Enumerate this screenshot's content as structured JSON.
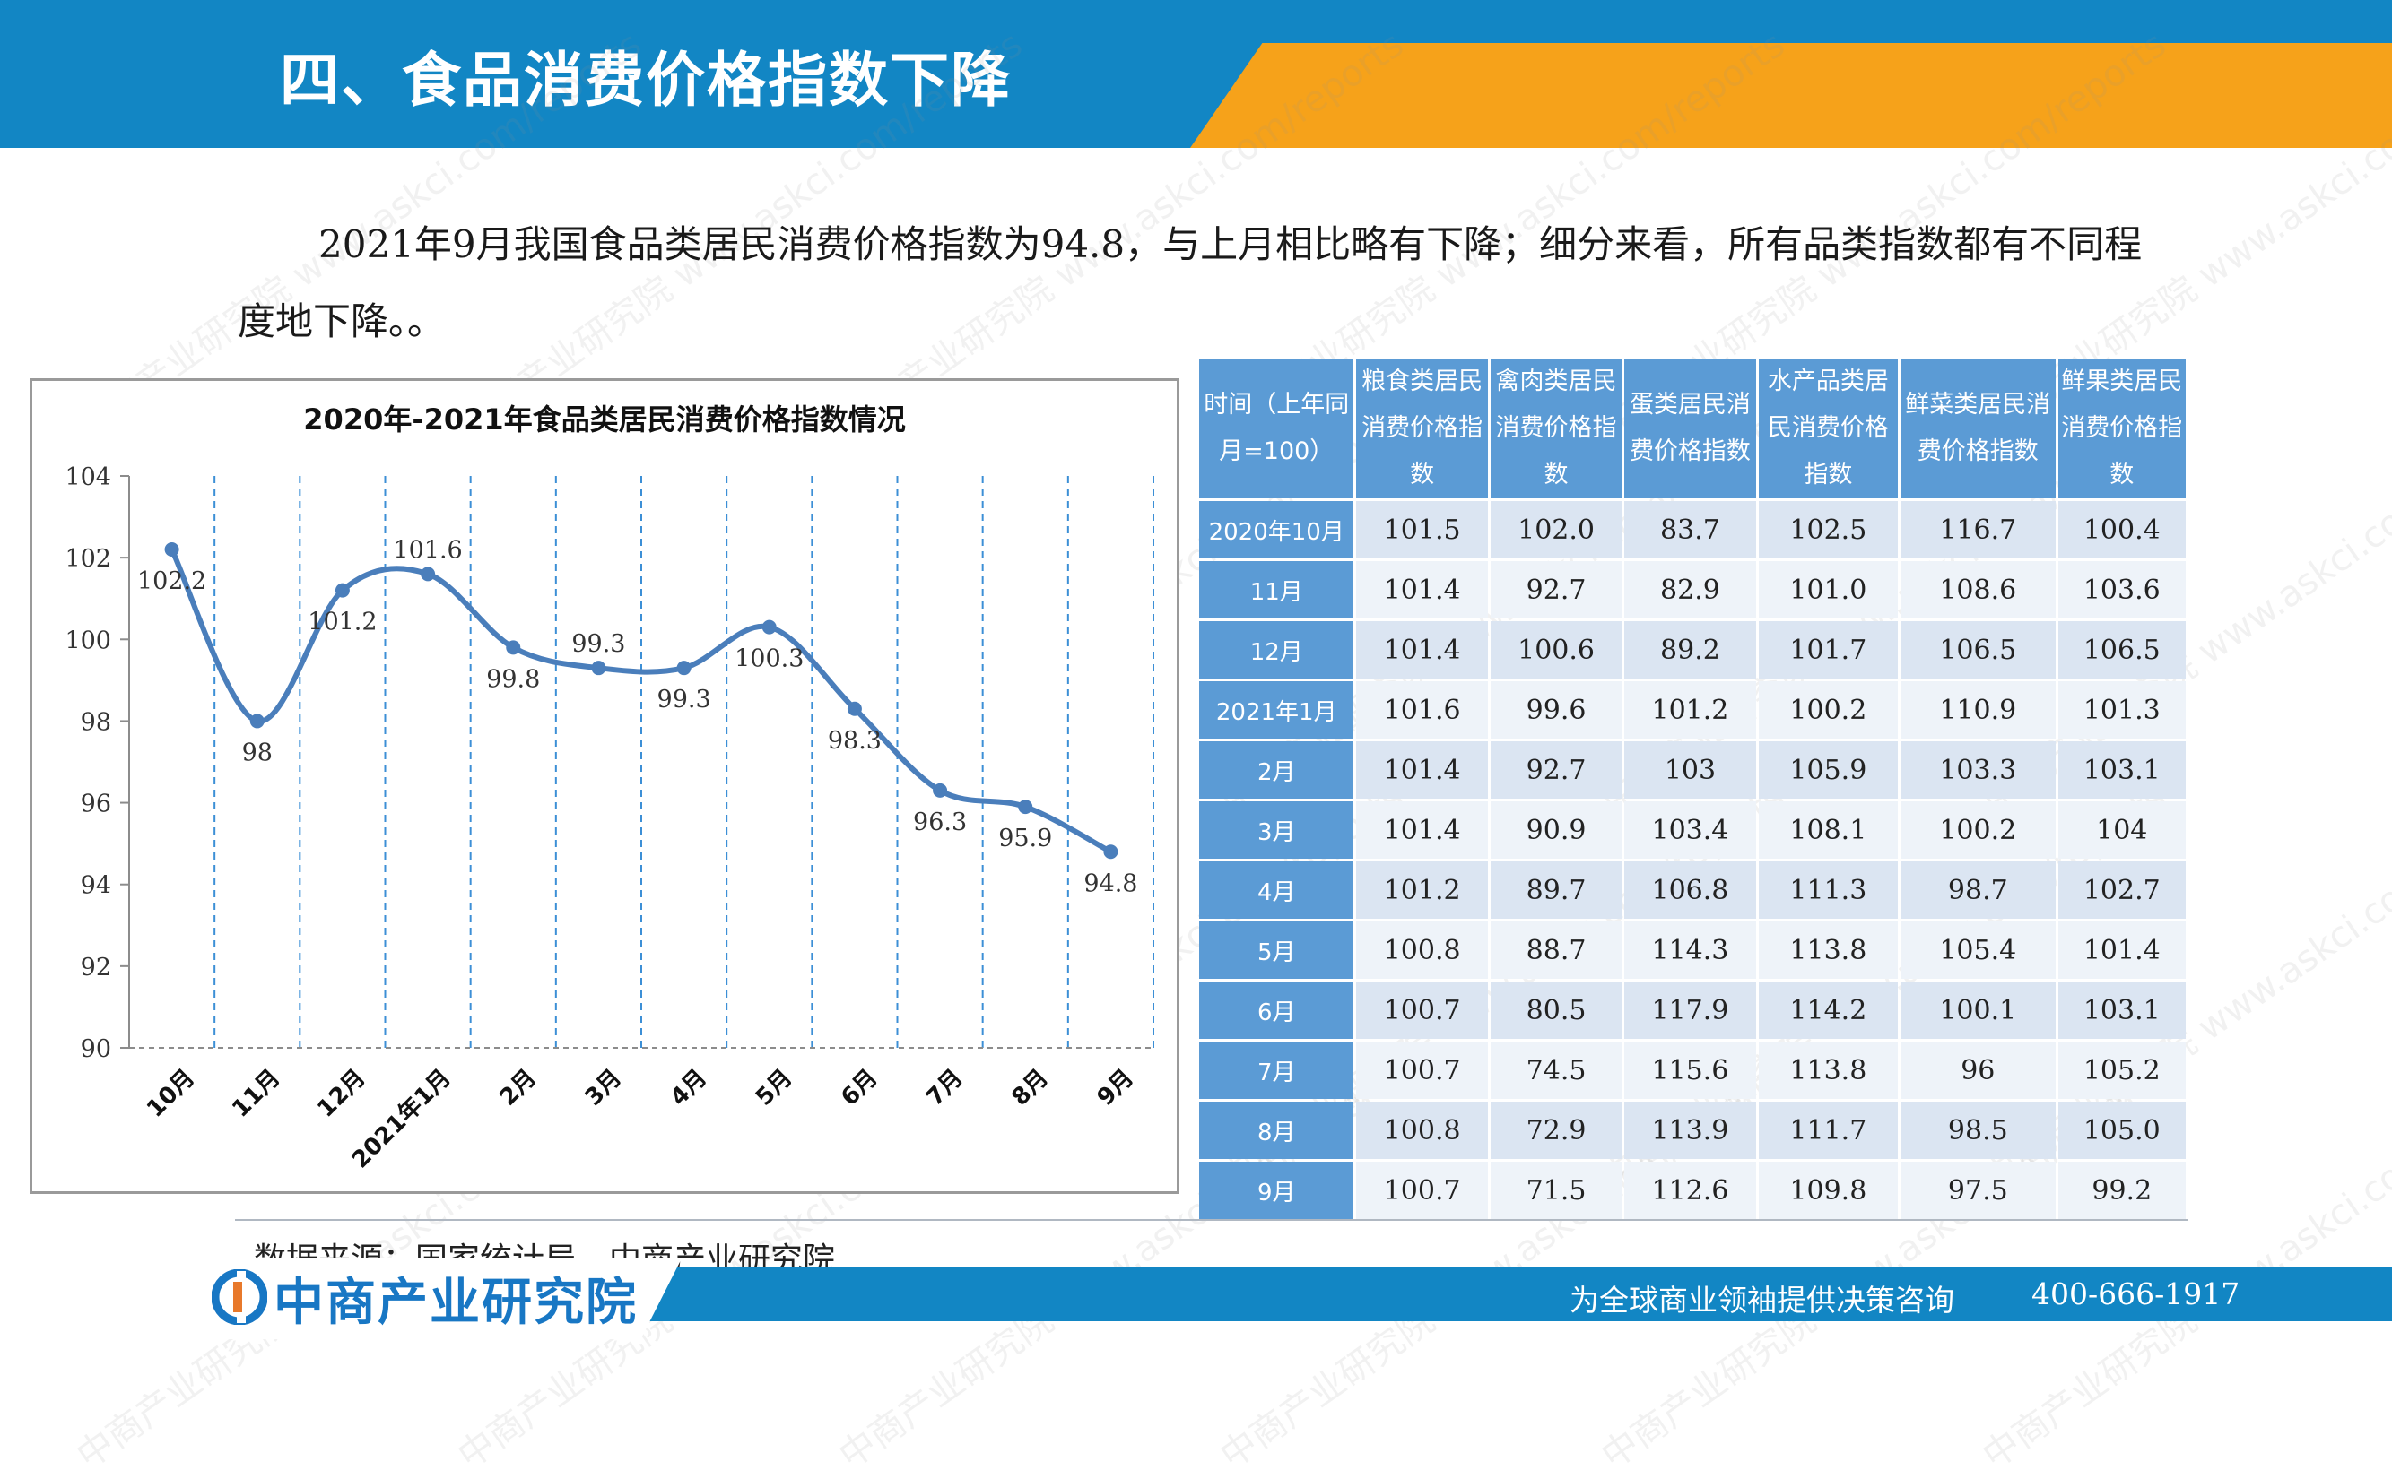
{
  "page_title": "四、食品消费价格指数下降",
  "intro_text": "2021年9月我国食品类居民消费价格指数为94.8，与上月相比略有下降；细分来看，所有品类指数都有不同程度地下降。。",
  "chart_data": {
    "type": "line",
    "title": "2020年-2021年食品类居民消费价格指数情况",
    "categories": [
      "10月",
      "11月",
      "12月",
      "2021年1月",
      "2月",
      "3月",
      "4月",
      "5月",
      "6月",
      "7月",
      "8月",
      "9月"
    ],
    "values": [
      102.2,
      98,
      101.2,
      101.6,
      99.8,
      99.3,
      99.3,
      100.3,
      98.3,
      96.3,
      95.9,
      94.8
    ],
    "y_ticks": [
      90,
      92,
      94,
      96,
      98,
      100,
      102,
      104
    ],
    "ylim": [
      90,
      104
    ],
    "line_color": "#4a7ebb",
    "gridline_style": "dashed vertical",
    "grid_color": "#3c8fd6"
  },
  "table": {
    "headers": [
      "时间（上年同月=100）",
      "粮食类居民消费价格指数",
      "禽肉类居民消费价格指数",
      "蛋类居民消费价格指数",
      "水产品类居民消费价格指数",
      "鲜菜类居民消费价格指数",
      "鲜果类居民消费价格指数"
    ],
    "rows": [
      {
        "label": "2020年10月",
        "values": [
          "101.5",
          "102.0",
          "83.7",
          "102.5",
          "116.7",
          "100.4"
        ]
      },
      {
        "label": "11月",
        "values": [
          "101.4",
          "92.7",
          "82.9",
          "101.0",
          "108.6",
          "103.6"
        ]
      },
      {
        "label": "12月",
        "values": [
          "101.4",
          "100.6",
          "89.2",
          "101.7",
          "106.5",
          "106.5"
        ]
      },
      {
        "label": "2021年1月",
        "values": [
          "101.6",
          "99.6",
          "101.2",
          "100.2",
          "110.9",
          "101.3"
        ]
      },
      {
        "label": "2月",
        "values": [
          "101.4",
          "92.7",
          "103",
          "105.9",
          "103.3",
          "103.1"
        ]
      },
      {
        "label": "3月",
        "values": [
          "101.4",
          "90.9",
          "103.4",
          "108.1",
          "100.2",
          "104"
        ]
      },
      {
        "label": "4月",
        "values": [
          "101.2",
          "89.7",
          "106.8",
          "111.3",
          "98.7",
          "102.7"
        ]
      },
      {
        "label": "5月",
        "values": [
          "100.8",
          "88.7",
          "114.3",
          "113.8",
          "105.4",
          "101.4"
        ]
      },
      {
        "label": "6月",
        "values": [
          "100.7",
          "80.5",
          "117.9",
          "114.2",
          "100.1",
          "103.1"
        ]
      },
      {
        "label": "7月",
        "values": [
          "100.7",
          "74.5",
          "115.6",
          "113.8",
          "96",
          "105.2"
        ]
      },
      {
        "label": "8月",
        "values": [
          "100.8",
          "72.9",
          "113.9",
          "111.7",
          "98.5",
          "105.0"
        ]
      },
      {
        "label": "9月",
        "values": [
          "100.7",
          "71.5",
          "112.6",
          "109.8",
          "97.5",
          "99.2"
        ]
      }
    ]
  },
  "source_text": "数据来源：国家统计局、中商产业研究院",
  "footer": {
    "logo_text": "中商产业研究院",
    "tagline": "为全球商业领袖提供决策咨询",
    "phone": "400-666-1917"
  },
  "watermark_text": "中商产业研究院 www.askci.com/reports",
  "colors": {
    "header_blue": "#1286c4",
    "header_orange": "#f6a21a",
    "table_header_blue": "#5b9bd5",
    "table_cell_light": "#dbe5f2"
  }
}
